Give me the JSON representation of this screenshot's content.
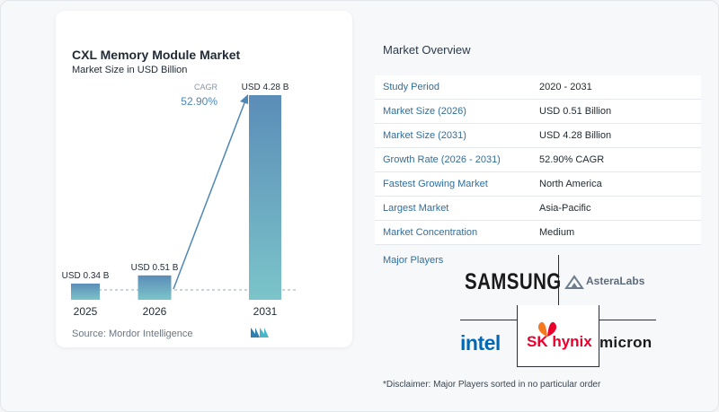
{
  "chart": {
    "title": "CXL Memory Module Market",
    "subtitle": "Market Size in USD Billion",
    "source": "Source:  Mordor Intelligence",
    "cagr_label": "CAGR",
    "cagr_value": "52.90%"
  },
  "chart_data": {
    "type": "bar",
    "categories": [
      "2025",
      "2026",
      "2031"
    ],
    "values": [
      0.34,
      0.51,
      4.28
    ],
    "data_labels": [
      "USD 0.34 B",
      "USD 0.51 B",
      "USD 4.28 B"
    ],
    "title": "CXL Memory Module Market",
    "subtitle": "Market Size in USD Billion",
    "xlabel": "",
    "ylabel": "",
    "ylim": [
      0,
      4.28
    ],
    "grid": false,
    "annotation": "CAGR 52.90%",
    "colors": [
      "#5b8db8",
      "#7bc4c9"
    ]
  },
  "overview": {
    "title": "Market Overview",
    "rows": [
      {
        "key": "Study Period",
        "value": "2020 - 2031"
      },
      {
        "key": "Market Size (2026)",
        "value": "USD 0.51 Billion"
      },
      {
        "key": "Market Size (2031)",
        "value": "USD 4.28 Billion"
      },
      {
        "key": "Growth Rate (2026 - 2031)",
        "value": "52.90% CAGR"
      },
      {
        "key": "Fastest Growing Market",
        "value": "North America"
      },
      {
        "key": "Largest Market",
        "value": "Asia-Pacific"
      },
      {
        "key": "Market Concentration",
        "value": "Medium"
      }
    ]
  },
  "players": {
    "label": "Major Players",
    "logos": [
      "SAMSUNG",
      "AsteraLabs",
      "intel",
      "SK hynix",
      "micron"
    ],
    "disclaimer": "*Disclaimer: Major Players sorted in no particular order"
  },
  "colors": {
    "accent": "#2f6e9c",
    "bar_top": "#5b8db8",
    "bar_bottom": "#7bc4c9",
    "samsung": "#1a1a1a",
    "intel": "#0068b5",
    "sk": "#ea002c"
  }
}
